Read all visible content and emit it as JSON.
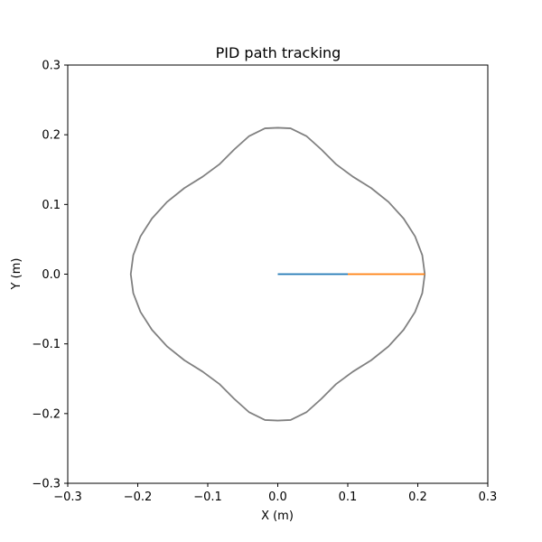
{
  "chart_data": {
    "type": "line",
    "title": "PID path tracking",
    "xlabel": "X (m)",
    "ylabel": "Y (m)",
    "xlim": [
      -0.3,
      0.3
    ],
    "ylim": [
      -0.3,
      0.3
    ],
    "grid": false,
    "x_ticks": [
      "−0.3",
      "−0.2",
      "−0.1",
      "0.0",
      "0.1",
      "0.2",
      "0.3"
    ],
    "y_ticks": [
      "−0.3",
      "−0.2",
      "−0.1",
      "0.0",
      "0.1",
      "0.2",
      "0.3"
    ],
    "series": [
      {
        "color": "#808080",
        "points": [
          [
            0.21,
            0.0
          ],
          [
            0.2064,
            0.0273
          ],
          [
            0.1961,
            0.0542
          ],
          [
            0.1797,
            0.0799
          ],
          [
            0.1582,
            0.1036
          ],
          [
            0.1333,
            0.1236
          ],
          [
            0.1075,
            0.1397
          ],
          [
            0.0835,
            0.1575
          ],
          [
            0.0621,
            0.179
          ],
          [
            0.0409,
            0.1981
          ],
          [
            0.0183,
            0.2092
          ],
          [
            0.0,
            0.21
          ],
          [
            -0.0183,
            0.2092
          ],
          [
            -0.0409,
            0.1981
          ],
          [
            -0.0621,
            0.179
          ],
          [
            -0.0835,
            0.1575
          ],
          [
            -0.1075,
            0.1397
          ],
          [
            -0.1333,
            0.1236
          ],
          [
            -0.1582,
            0.1036
          ],
          [
            -0.1797,
            0.0799
          ],
          [
            -0.1961,
            0.0542
          ],
          [
            -0.2064,
            0.0273
          ],
          [
            -0.21,
            0.0
          ],
          [
            -0.2064,
            -0.0273
          ],
          [
            -0.1961,
            -0.0542
          ],
          [
            -0.1797,
            -0.0799
          ],
          [
            -0.1582,
            -0.1036
          ],
          [
            -0.1333,
            -0.1236
          ],
          [
            -0.1075,
            -0.1397
          ],
          [
            -0.0835,
            -0.1575
          ],
          [
            -0.0621,
            -0.179
          ],
          [
            -0.0409,
            -0.1981
          ],
          [
            -0.0183,
            -0.2092
          ],
          [
            0.0,
            -0.21
          ],
          [
            0.0183,
            -0.2092
          ],
          [
            0.0409,
            -0.1981
          ],
          [
            0.0621,
            -0.179
          ],
          [
            0.0835,
            -0.1575
          ],
          [
            0.1075,
            -0.1397
          ],
          [
            0.1333,
            -0.1236
          ],
          [
            0.1582,
            -0.1036
          ],
          [
            0.1797,
            -0.0799
          ],
          [
            0.1961,
            -0.0542
          ],
          [
            0.2064,
            -0.0273
          ],
          [
            0.21,
            0.0
          ]
        ]
      },
      {
        "color": "#1f77b4",
        "points": [
          [
            0.0,
            0.0
          ],
          [
            0.1,
            0.0
          ]
        ]
      },
      {
        "color": "#ff7f0e",
        "points": [
          [
            0.1,
            0.0
          ],
          [
            0.21,
            0.0
          ]
        ]
      }
    ]
  }
}
